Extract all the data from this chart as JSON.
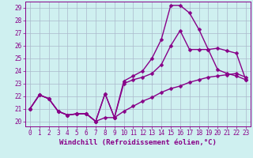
{
  "xlabel": "Windchill (Refroidissement éolien,°C)",
  "background_color": "#cff0f0",
  "grid_color": "#aab8cc",
  "line_color": "#880088",
  "xlim": [
    -0.5,
    23.5
  ],
  "ylim": [
    19.6,
    29.5
  ],
  "xticks": [
    0,
    1,
    2,
    3,
    4,
    5,
    6,
    7,
    8,
    9,
    10,
    11,
    12,
    13,
    14,
    15,
    16,
    17,
    18,
    19,
    20,
    21,
    22,
    23
  ],
  "yticks": [
    20,
    21,
    22,
    23,
    24,
    25,
    26,
    27,
    28,
    29
  ],
  "line1_x": [
    0,
    1,
    2,
    3,
    4,
    5,
    6,
    7,
    8,
    9,
    10,
    11,
    12,
    13,
    14,
    15,
    16,
    17,
    18,
    19,
    20,
    21,
    22,
    23
  ],
  "line1_y": [
    21.0,
    22.1,
    21.8,
    20.8,
    20.5,
    20.6,
    20.6,
    20.0,
    22.2,
    20.3,
    23.2,
    23.6,
    24.0,
    25.0,
    26.5,
    29.2,
    29.2,
    28.6,
    27.3,
    25.7,
    24.1,
    23.8,
    23.6,
    23.3
  ],
  "line2_x": [
    0,
    1,
    2,
    3,
    4,
    5,
    6,
    7,
    8,
    9,
    10,
    11,
    12,
    13,
    14,
    15,
    16,
    17,
    18,
    19,
    20,
    21,
    22,
    23
  ],
  "line2_y": [
    21.0,
    22.1,
    21.8,
    20.8,
    20.5,
    20.6,
    20.6,
    20.0,
    22.2,
    20.3,
    23.0,
    23.3,
    23.5,
    23.8,
    24.5,
    26.0,
    27.2,
    25.7,
    25.7,
    25.7,
    25.8,
    25.6,
    25.4,
    23.3
  ],
  "line3_x": [
    0,
    1,
    2,
    3,
    4,
    5,
    6,
    7,
    8,
    9,
    10,
    11,
    12,
    13,
    14,
    15,
    16,
    17,
    18,
    19,
    20,
    21,
    22,
    23
  ],
  "line3_y": [
    21.0,
    22.1,
    21.8,
    20.8,
    20.5,
    20.6,
    20.6,
    20.0,
    20.3,
    20.3,
    20.8,
    21.2,
    21.6,
    21.9,
    22.3,
    22.6,
    22.8,
    23.1,
    23.3,
    23.5,
    23.6,
    23.7,
    23.8,
    23.5
  ],
  "marker_size": 2.5,
  "line_width": 1.0,
  "font_size_ticks": 5.5,
  "font_size_xlabel": 6.5
}
